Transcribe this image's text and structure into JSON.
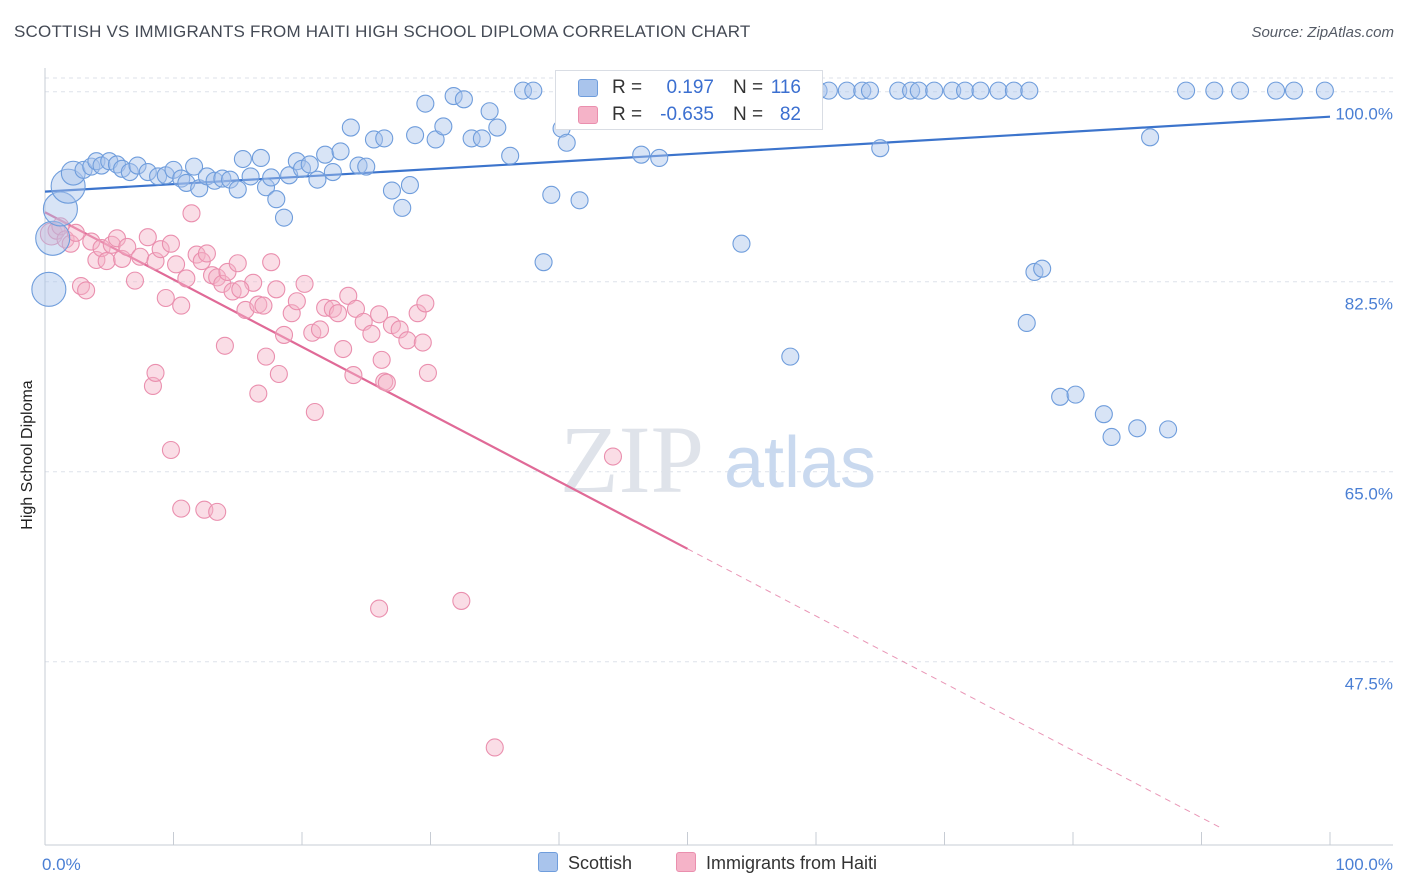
{
  "title": "SCOTTISH VS IMMIGRANTS FROM HAITI HIGH SCHOOL DIPLOMA CORRELATION CHART",
  "source": "Source: ZipAtlas.com",
  "watermark": {
    "zip": "ZIP",
    "atlas": "atlas"
  },
  "legend": {
    "rows": [
      {
        "r_label": "R =",
        "r_value": "0.197",
        "n_label": "N =",
        "n_value": "116"
      },
      {
        "r_label": "R =",
        "r_value": "-0.635",
        "n_label": "N =",
        "n_value": "82"
      }
    ]
  },
  "bottom_legend": {
    "scottish": "Scottish",
    "haiti": "Immigrants from Haiti"
  },
  "colors": {
    "blue_fill": "#a9c4ec",
    "blue_stroke": "#6f9ddc",
    "blue_line": "#3c74cc",
    "pink_fill": "#f5b3c8",
    "pink_stroke": "#ea8fae",
    "pink_line": "#e06a97",
    "grid": "#dde2ea",
    "axis_text": "#4a7fd4"
  },
  "chart_data": {
    "type": "scatter",
    "title": "SCOTTISH VS IMMIGRANTS FROM HAITI HIGH SCHOOL DIPLOMA CORRELATION CHART",
    "xlabel": "",
    "ylabel": "High School Diploma",
    "xlim": [
      0,
      100
    ],
    "ylim": [
      32,
      102
    ],
    "x_tick_labels": [
      "0.0%",
      "100.0%"
    ],
    "y_ticks": [
      47.5,
      65.0,
      82.5,
      100.0
    ],
    "y_tick_labels": [
      "47.5%",
      "65.0%",
      "82.5%",
      "100.0%"
    ],
    "grid": true,
    "legend_position": "top-center",
    "series": [
      {
        "name": "Scottish",
        "R": 0.197,
        "N": 116,
        "trend": {
          "x": [
            0,
            100
          ],
          "y": [
            90.8,
            97.7
          ]
        },
        "points": [
          [
            0.3,
            81.8,
            2
          ],
          [
            0.6,
            86.5,
            2
          ],
          [
            1.2,
            89.2,
            2
          ],
          [
            1.8,
            91.3,
            2
          ],
          [
            2.2,
            92.5,
            1.4
          ],
          [
            3.0,
            92.8,
            1
          ],
          [
            3.6,
            93.1,
            1
          ],
          [
            4.0,
            93.6,
            1
          ],
          [
            4.4,
            93.2,
            1
          ],
          [
            5.0,
            93.6,
            1
          ],
          [
            5.6,
            93.3,
            1
          ],
          [
            6.0,
            92.9,
            1
          ],
          [
            6.6,
            92.6,
            1
          ],
          [
            7.2,
            93.2,
            1
          ],
          [
            8.0,
            92.6,
            1
          ],
          [
            8.8,
            92.2,
            1
          ],
          [
            9.4,
            92.3,
            1
          ],
          [
            10.0,
            92.8,
            1
          ],
          [
            10.6,
            92.0,
            1
          ],
          [
            11.0,
            91.6,
            1
          ],
          [
            11.6,
            93.1,
            1
          ],
          [
            12.0,
            91.1,
            1
          ],
          [
            12.6,
            92.2,
            1
          ],
          [
            13.2,
            91.8,
            1
          ],
          [
            13.8,
            92.0,
            1
          ],
          [
            14.4,
            91.9,
            1
          ],
          [
            15.0,
            91.0,
            1
          ],
          [
            15.4,
            93.8,
            1
          ],
          [
            16.0,
            92.2,
            1
          ],
          [
            16.8,
            93.9,
            1
          ],
          [
            17.2,
            91.2,
            1
          ],
          [
            17.6,
            92.1,
            1
          ],
          [
            18.0,
            90.1,
            1
          ],
          [
            18.6,
            88.4,
            1
          ],
          [
            19.0,
            92.3,
            1
          ],
          [
            19.6,
            93.6,
            1
          ],
          [
            20.0,
            92.9,
            1
          ],
          [
            20.6,
            93.3,
            1
          ],
          [
            21.2,
            91.9,
            1
          ],
          [
            21.8,
            94.2,
            1
          ],
          [
            22.4,
            92.6,
            1
          ],
          [
            23.0,
            94.5,
            1
          ],
          [
            23.8,
            96.7,
            1
          ],
          [
            24.4,
            93.2,
            1
          ],
          [
            25.0,
            93.1,
            1
          ],
          [
            25.6,
            95.6,
            1
          ],
          [
            26.4,
            95.7,
            1
          ],
          [
            27.0,
            90.9,
            1
          ],
          [
            27.8,
            89.3,
            1
          ],
          [
            28.4,
            91.4,
            1
          ],
          [
            28.8,
            96.0,
            1
          ],
          [
            29.6,
            98.9,
            1
          ],
          [
            30.4,
            95.6,
            1
          ],
          [
            31.0,
            96.8,
            1
          ],
          [
            31.8,
            99.6,
            1
          ],
          [
            32.6,
            99.3,
            1
          ],
          [
            33.2,
            95.7,
            1
          ],
          [
            34.0,
            95.7,
            1
          ],
          [
            34.6,
            98.2,
            1
          ],
          [
            35.2,
            96.7,
            1
          ],
          [
            36.2,
            94.1,
            1
          ],
          [
            37.2,
            100.1,
            1
          ],
          [
            38.0,
            100.1,
            1
          ],
          [
            38.8,
            84.3,
            1
          ],
          [
            39.4,
            90.5,
            1
          ],
          [
            40.2,
            96.6,
            1
          ],
          [
            40.6,
            95.3,
            1
          ],
          [
            41.6,
            90.0,
            1
          ],
          [
            42.8,
            100.1,
            1
          ],
          [
            44.0,
            100.1,
            1
          ],
          [
            45.4,
            100.1,
            1
          ],
          [
            46.4,
            94.2,
            1
          ],
          [
            47.2,
            100.1,
            1
          ],
          [
            47.8,
            93.9,
            1
          ],
          [
            48.0,
            100.1,
            1
          ],
          [
            49.0,
            100.1,
            1
          ],
          [
            50.6,
            100.1,
            1
          ],
          [
            51.2,
            100.1,
            1
          ],
          [
            52.0,
            100.1,
            1
          ],
          [
            53.6,
            100.1,
            1
          ],
          [
            54.2,
            86.0,
            1
          ],
          [
            55.0,
            100.1,
            1
          ],
          [
            56.6,
            100.1,
            1
          ],
          [
            57.4,
            100.1,
            1
          ],
          [
            58.0,
            75.6,
            1
          ],
          [
            59.0,
            100.1,
            1
          ],
          [
            60.2,
            100.1,
            1
          ],
          [
            61.0,
            100.1,
            1
          ],
          [
            62.4,
            100.1,
            1
          ],
          [
            63.6,
            100.1,
            1
          ],
          [
            64.2,
            100.1,
            1
          ],
          [
            65.0,
            94.8,
            1
          ],
          [
            66.4,
            100.1,
            1
          ],
          [
            67.4,
            100.1,
            1
          ],
          [
            68.0,
            100.1,
            1
          ],
          [
            69.2,
            100.1,
            1
          ],
          [
            70.6,
            100.1,
            1
          ],
          [
            71.6,
            100.1,
            1
          ],
          [
            72.8,
            100.1,
            1
          ],
          [
            74.2,
            100.1,
            1
          ],
          [
            75.4,
            100.1,
            1
          ],
          [
            76.6,
            100.1,
            1
          ],
          [
            76.4,
            78.7,
            1
          ],
          [
            77.0,
            83.4,
            1
          ],
          [
            77.6,
            83.7,
            1
          ],
          [
            79.0,
            71.9,
            1
          ],
          [
            80.2,
            72.1,
            1
          ],
          [
            82.4,
            70.3,
            1
          ],
          [
            83.0,
            68.2,
            1
          ],
          [
            85.0,
            69.0,
            1
          ],
          [
            86.0,
            95.8,
            1
          ],
          [
            87.4,
            68.9,
            1
          ],
          [
            88.8,
            100.1,
            1
          ],
          [
            91.0,
            100.1,
            1
          ],
          [
            93.0,
            100.1,
            1
          ],
          [
            95.8,
            100.1,
            1
          ],
          [
            97.2,
            100.1,
            1
          ],
          [
            99.6,
            100.1,
            1
          ]
        ]
      },
      {
        "name": "Immigrants from Haiti",
        "R": -0.635,
        "N": 82,
        "trend": {
          "x": [
            0,
            50
          ],
          "y": [
            88.9,
            57.9
          ]
        },
        "trend_extension": {
          "x": [
            50,
            91.5
          ],
          "y": [
            57.9,
            32.2
          ]
        },
        "points": [
          [
            0.5,
            86.9,
            1.3
          ],
          [
            0.9,
            87.2,
            1
          ],
          [
            1.2,
            87.6,
            1
          ],
          [
            1.6,
            86.4,
            1
          ],
          [
            2.0,
            86.0,
            1
          ],
          [
            2.4,
            87.0,
            1
          ],
          [
            2.8,
            82.1,
            1
          ],
          [
            3.2,
            81.7,
            1
          ],
          [
            3.6,
            86.2,
            1
          ],
          [
            4.0,
            84.5,
            1
          ],
          [
            4.4,
            85.6,
            1
          ],
          [
            4.8,
            84.4,
            1
          ],
          [
            5.2,
            85.9,
            1
          ],
          [
            5.6,
            86.5,
            1
          ],
          [
            6.0,
            84.6,
            1
          ],
          [
            6.4,
            85.7,
            1
          ],
          [
            7.0,
            82.6,
            1
          ],
          [
            7.4,
            84.8,
            1
          ],
          [
            8.0,
            86.6,
            1
          ],
          [
            8.6,
            84.4,
            1
          ],
          [
            9.0,
            85.5,
            1
          ],
          [
            9.4,
            81.0,
            1
          ],
          [
            9.8,
            86.0,
            1
          ],
          [
            10.2,
            84.1,
            1
          ],
          [
            10.6,
            80.3,
            1
          ],
          [
            11.0,
            82.8,
            1
          ],
          [
            11.4,
            88.8,
            1
          ],
          [
            11.8,
            85.0,
            1
          ],
          [
            12.2,
            84.4,
            1
          ],
          [
            12.6,
            85.1,
            1
          ],
          [
            13.0,
            83.1,
            1
          ],
          [
            13.4,
            82.9,
            1
          ],
          [
            13.8,
            82.3,
            1
          ],
          [
            14.2,
            83.4,
            1
          ],
          [
            14.6,
            81.6,
            1
          ],
          [
            15.0,
            84.2,
            1
          ],
          [
            15.6,
            79.9,
            1
          ],
          [
            16.2,
            82.4,
            1
          ],
          [
            16.6,
            80.4,
            1
          ],
          [
            17.0,
            80.3,
            1
          ],
          [
            17.6,
            84.3,
            1
          ],
          [
            18.0,
            81.8,
            1
          ],
          [
            18.6,
            77.6,
            1
          ],
          [
            19.2,
            79.6,
            1
          ],
          [
            19.6,
            80.7,
            1
          ],
          [
            20.2,
            82.3,
            1
          ],
          [
            20.8,
            77.8,
            1
          ],
          [
            21.4,
            78.1,
            1
          ],
          [
            21.8,
            80.1,
            1
          ],
          [
            22.4,
            80.0,
            1
          ],
          [
            22.8,
            79.6,
            1
          ],
          [
            23.2,
            76.3,
            1
          ],
          [
            23.6,
            81.2,
            1
          ],
          [
            24.2,
            80.0,
            1
          ],
          [
            24.8,
            78.8,
            1
          ],
          [
            25.4,
            77.7,
            1
          ],
          [
            26.2,
            75.3,
            1
          ],
          [
            27.0,
            78.5,
            1
          ],
          [
            27.6,
            78.1,
            1
          ],
          [
            28.2,
            77.1,
            1
          ],
          [
            29.0,
            79.6,
            1
          ],
          [
            29.6,
            80.5,
            1
          ],
          [
            9.8,
            67.0,
            1
          ],
          [
            10.6,
            61.6,
            1
          ],
          [
            12.4,
            61.5,
            1
          ],
          [
            13.4,
            61.3,
            1
          ],
          [
            14.0,
            76.6,
            1
          ],
          [
            15.2,
            81.8,
            1
          ],
          [
            16.6,
            72.2,
            1
          ],
          [
            17.2,
            75.6,
            1
          ],
          [
            18.2,
            74.0,
            1
          ],
          [
            21.0,
            70.5,
            1
          ],
          [
            24.0,
            73.9,
            1
          ],
          [
            26.4,
            73.3,
            1
          ],
          [
            8.4,
            72.9,
            1
          ],
          [
            8.6,
            74.1,
            1
          ],
          [
            29.8,
            74.1,
            1
          ],
          [
            29.4,
            76.9,
            1
          ],
          [
            26.0,
            79.5,
            1
          ],
          [
            26.6,
            73.2,
            1
          ],
          [
            26.0,
            52.4,
            1
          ],
          [
            32.4,
            53.1,
            1
          ],
          [
            44.2,
            66.4,
            1
          ],
          [
            35.0,
            39.6,
            1
          ]
        ]
      }
    ]
  }
}
